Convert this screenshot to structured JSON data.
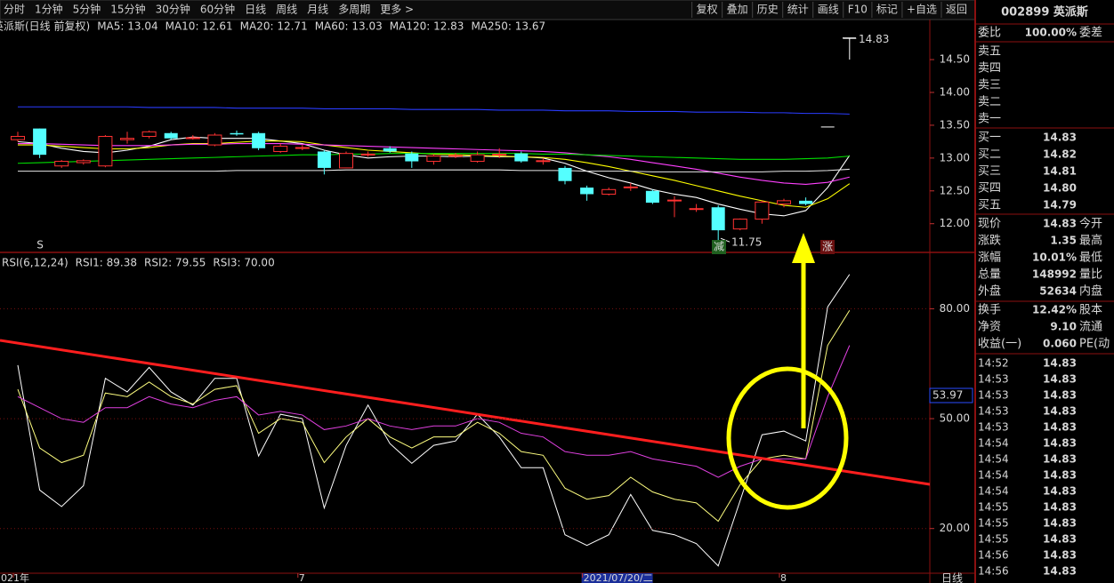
{
  "toolbar": {
    "left": [
      "分时",
      "1分钟",
      "5分钟",
      "15分钟",
      "30分钟",
      "60分钟",
      "日线",
      "周线",
      "月线",
      "多周期",
      "更多 >"
    ],
    "active": "日线",
    "right": [
      "复权",
      "叠加",
      "历史",
      "统计",
      "画线",
      "F10",
      "标记",
      "+自选",
      "返回"
    ]
  },
  "price_panel": {
    "type": "candlestick",
    "title": "英派斯(日线 前复权)",
    "categories": [
      "2021年",
      null,
      null,
      null,
      null,
      null,
      null,
      null,
      null,
      null,
      null,
      null,
      null,
      "7",
      null,
      null,
      null,
      null,
      null,
      null,
      null,
      null,
      null,
      null,
      null,
      null,
      "2021/07/20/二",
      null,
      null,
      null,
      null,
      null,
      null,
      null,
      null,
      "8",
      null,
      null,
      null
    ],
    "open": [
      13.28,
      13.45,
      12.88,
      12.93,
      12.88,
      13.28,
      13.33,
      13.38,
      13.3,
      13.2,
      13.38,
      13.38,
      13.1,
      13.15,
      13.1,
      12.85,
      13.05,
      13.15,
      13.07,
      12.95,
      13.03,
      12.95,
      13.05,
      13.07,
      12.95,
      12.85,
      12.55,
      12.45,
      12.55,
      12.5,
      12.35,
      12.22,
      12.25,
      11.92,
      12.07,
      12.3,
      12.35,
      13.48,
      14.83
    ],
    "close": [
      13.33,
      13.05,
      12.95,
      12.96,
      13.33,
      13.3,
      13.4,
      13.3,
      13.31,
      13.35,
      13.36,
      13.15,
      13.18,
      13.16,
      12.85,
      13.07,
      13.06,
      13.1,
      12.95,
      13.03,
      13.04,
      13.05,
      13.06,
      12.95,
      12.96,
      12.65,
      12.45,
      12.52,
      12.56,
      12.32,
      12.36,
      12.23,
      11.9,
      12.07,
      12.33,
      12.35,
      12.3,
      13.48,
      14.83
    ],
    "high": [
      13.4,
      13.45,
      12.97,
      12.98,
      13.35,
      13.4,
      13.42,
      13.4,
      13.35,
      13.38,
      13.42,
      13.4,
      13.22,
      13.2,
      13.12,
      13.1,
      13.1,
      13.18,
      13.1,
      13.06,
      13.08,
      13.1,
      13.15,
      13.1,
      13.0,
      12.88,
      12.58,
      12.55,
      12.62,
      12.52,
      12.42,
      12.3,
      12.28,
      12.08,
      12.35,
      12.38,
      12.4,
      13.48,
      14.83
    ],
    "low": [
      13.25,
      13.0,
      12.85,
      12.9,
      12.86,
      13.22,
      13.3,
      13.28,
      13.28,
      13.18,
      13.34,
      13.12,
      13.08,
      13.12,
      12.75,
      12.85,
      13.02,
      13.08,
      12.85,
      12.9,
      13.0,
      12.93,
      13.0,
      12.93,
      12.9,
      12.6,
      12.35,
      12.43,
      12.5,
      12.3,
      12.1,
      12.18,
      11.75,
      11.9,
      12.0,
      12.25,
      12.28,
      13.48,
      14.5
    ],
    "up_color": "#ff3232",
    "down_color": "#54ffff",
    "flat_color": "#ffffff",
    "series": [
      {
        "label": "MA5: 13.04",
        "color": "#ffffff",
        "values": [
          13.25,
          13.22,
          13.15,
          13.1,
          13.08,
          13.12,
          13.18,
          13.28,
          13.32,
          13.3,
          13.3,
          13.3,
          13.26,
          13.22,
          13.12,
          13.05,
          13.0,
          13.02,
          13.03,
          13.03,
          13.02,
          13.03,
          13.02,
          13.02,
          13.0,
          12.92,
          12.8,
          12.7,
          12.62,
          12.52,
          12.45,
          12.4,
          12.3,
          12.22,
          12.15,
          12.12,
          12.2,
          12.55,
          13.04
        ]
      },
      {
        "label": "MA10: 12.61",
        "color": "#ffff00",
        "values": [
          13.2,
          13.2,
          13.18,
          13.16,
          13.14,
          13.14,
          13.16,
          13.2,
          13.22,
          13.22,
          13.24,
          13.26,
          13.26,
          13.25,
          13.2,
          13.16,
          13.12,
          13.1,
          13.08,
          13.06,
          13.05,
          13.04,
          13.03,
          13.02,
          13.01,
          12.98,
          12.93,
          12.87,
          12.8,
          12.73,
          12.66,
          12.58,
          12.5,
          12.42,
          12.35,
          12.28,
          12.25,
          12.38,
          12.61
        ]
      },
      {
        "label": "MA20: 12.71",
        "color": "#ff40ff",
        "values": [
          13.22,
          13.22,
          13.21,
          13.2,
          13.19,
          13.19,
          13.19,
          13.2,
          13.21,
          13.21,
          13.22,
          13.22,
          13.22,
          13.21,
          13.2,
          13.19,
          13.18,
          13.17,
          13.16,
          13.15,
          13.14,
          13.13,
          13.12,
          13.11,
          13.1,
          13.08,
          13.05,
          13.02,
          12.98,
          12.93,
          12.88,
          12.83,
          12.77,
          12.71,
          12.66,
          12.62,
          12.6,
          12.63,
          12.71
        ]
      },
      {
        "label": "MA60: 13.03",
        "color": "#00e000",
        "values": [
          12.92,
          12.93,
          12.94,
          12.95,
          12.96,
          12.97,
          12.98,
          12.99,
          13.0,
          13.01,
          13.02,
          13.03,
          13.04,
          13.05,
          13.05,
          13.06,
          13.06,
          13.07,
          13.07,
          13.07,
          13.07,
          13.07,
          13.07,
          13.07,
          13.06,
          13.06,
          13.05,
          13.04,
          13.03,
          13.02,
          13.01,
          13.0,
          12.99,
          12.98,
          12.98,
          12.98,
          12.99,
          13.0,
          13.03
        ]
      },
      {
        "label": "MA120: 12.83",
        "color": "#e8e8e8",
        "values": [
          12.8,
          12.8,
          12.8,
          12.8,
          12.8,
          12.8,
          12.8,
          12.8,
          12.8,
          12.8,
          12.81,
          12.81,
          12.81,
          12.81,
          12.81,
          12.82,
          12.82,
          12.82,
          12.82,
          12.82,
          12.82,
          12.82,
          12.82,
          12.81,
          12.81,
          12.81,
          12.8,
          12.8,
          12.8,
          12.79,
          12.79,
          12.79,
          12.79,
          12.79,
          12.79,
          12.8,
          12.8,
          12.81,
          12.83
        ]
      },
      {
        "label": "MA250: 13.67",
        "color": "#2a3cff",
        "values": [
          13.78,
          13.78,
          13.78,
          13.78,
          13.78,
          13.78,
          13.77,
          13.77,
          13.77,
          13.77,
          13.76,
          13.76,
          13.76,
          13.76,
          13.75,
          13.75,
          13.75,
          13.75,
          13.74,
          13.74,
          13.74,
          13.74,
          13.73,
          13.73,
          13.73,
          13.72,
          13.72,
          13.72,
          13.71,
          13.71,
          13.71,
          13.7,
          13.7,
          13.7,
          13.69,
          13.69,
          13.68,
          13.68,
          13.67
        ]
      }
    ],
    "ylim": [
      11.59,
      15.11
    ],
    "yticks": [
      {
        "value": 12,
        "label": "12.00"
      },
      {
        "value": 12.5,
        "label": "12.50"
      },
      {
        "value": 13,
        "label": "13.00"
      },
      {
        "value": 13.5,
        "label": "13.50"
      },
      {
        "value": 14,
        "label": "14.00"
      },
      {
        "value": 14.5,
        "label": "14.50"
      }
    ],
    "high_label": "14.83",
    "low_label": "11.75",
    "markers": [
      "S",
      "减",
      "涨"
    ]
  },
  "rsi_panel": {
    "type": "line",
    "title": "RSI(6,12,24)",
    "series": [
      {
        "label": "RSI1: 89.38",
        "color": "#ffffff",
        "values": [
          64.6,
          30.5,
          26,
          31.7,
          61,
          57.3,
          64,
          57.3,
          53.7,
          61,
          61,
          39.8,
          51.2,
          50,
          25.6,
          42.7,
          53.7,
          43.2,
          37.8,
          42.7,
          43.9,
          51.2,
          45,
          36.6,
          36.6,
          18.3,
          15.4,
          18.3,
          29.3,
          19.5,
          18.3,
          15.9,
          9.8,
          27.6,
          45.6,
          46.6,
          43.9,
          80.5,
          89.38
        ]
      },
      {
        "label": "RSI2: 79.55",
        "color": "#ffff80",
        "values": [
          58,
          42,
          38,
          40,
          57,
          56,
          60,
          56,
          54,
          58,
          59,
          46,
          50,
          49,
          38,
          45,
          50,
          45,
          42,
          45,
          45,
          49,
          46,
          41,
          40,
          31,
          28,
          29,
          34,
          30,
          28,
          27,
          22,
          32,
          39,
          40,
          39,
          70,
          79.55
        ]
      },
      {
        "label": "RSI3: 70.00",
        "color": "#e040e0",
        "values": [
          56,
          53,
          50,
          49,
          53,
          53,
          56,
          54,
          53,
          55,
          56,
          51,
          52,
          51,
          47,
          48,
          50,
          48,
          47,
          48,
          48,
          50,
          49,
          46,
          45,
          41,
          40,
          40,
          41,
          39,
          38,
          37,
          34,
          37,
          39,
          39,
          39,
          56,
          70
        ]
      }
    ],
    "ylim": [
      7.8,
      94.9
    ],
    "yticks": [
      {
        "value": 20,
        "label": "20.00"
      },
      {
        "value": 50,
        "label": "50.00"
      },
      {
        "value": 80,
        "label": "80.00"
      }
    ],
    "grid": true,
    "current_label": "53.97"
  },
  "bottom_right": "日线",
  "quote": {
    "code_name": "002899 英派斯",
    "weibi": {
      "label": "委比",
      "value": "100.00%",
      "tail": "委差"
    },
    "sell": [
      "卖五",
      "卖四",
      "卖三",
      "卖二",
      "卖一"
    ],
    "buy": [
      {
        "label": "买一",
        "price": "14.83"
      },
      {
        "label": "买二",
        "price": "14.82"
      },
      {
        "label": "买三",
        "price": "14.81"
      },
      {
        "label": "买四",
        "price": "14.80"
      },
      {
        "label": "买五",
        "price": "14.79"
      }
    ],
    "stats": [
      {
        "label": "现价",
        "value": "14.83",
        "tail": "今开",
        "color": "#ff3c3c"
      },
      {
        "label": "涨跌",
        "value": "1.35",
        "tail": "最高",
        "color": "#ff3c3c"
      },
      {
        "label": "涨幅",
        "value": "10.01%",
        "tail": "最低",
        "color": "#ff3c3c"
      },
      {
        "label": "总量",
        "value": "148992",
        "tail": "量比",
        "color": "#ffff40"
      },
      {
        "label": "外盘",
        "value": "52634",
        "tail": "内盘",
        "color": "#ff3c3c"
      }
    ],
    "fund": [
      {
        "label": "换手",
        "value": "12.42%",
        "tail": "股本"
      },
      {
        "label": "净资",
        "value": "9.10",
        "tail": "流通"
      },
      {
        "label": "收益(一)",
        "value": "0.060",
        "tail": "PE(动"
      }
    ],
    "ticks": [
      {
        "time": "14:52",
        "price": "14.83"
      },
      {
        "time": "14:53",
        "price": "14.83"
      },
      {
        "time": "14:53",
        "price": "14.83"
      },
      {
        "time": "14:53",
        "price": "14.83"
      },
      {
        "time": "14:53",
        "price": "14.83"
      },
      {
        "time": "14:54",
        "price": "14.83"
      },
      {
        "time": "14:54",
        "price": "14.83"
      },
      {
        "time": "14:54",
        "price": "14.83"
      },
      {
        "time": "14:54",
        "price": "14.83"
      },
      {
        "time": "14:55",
        "price": "14.83"
      },
      {
        "time": "14:55",
        "price": "14.83"
      },
      {
        "time": "14:55",
        "price": "14.83"
      },
      {
        "time": "14:56",
        "price": "14.83"
      },
      {
        "time": "14:56",
        "price": "14.83"
      }
    ]
  }
}
